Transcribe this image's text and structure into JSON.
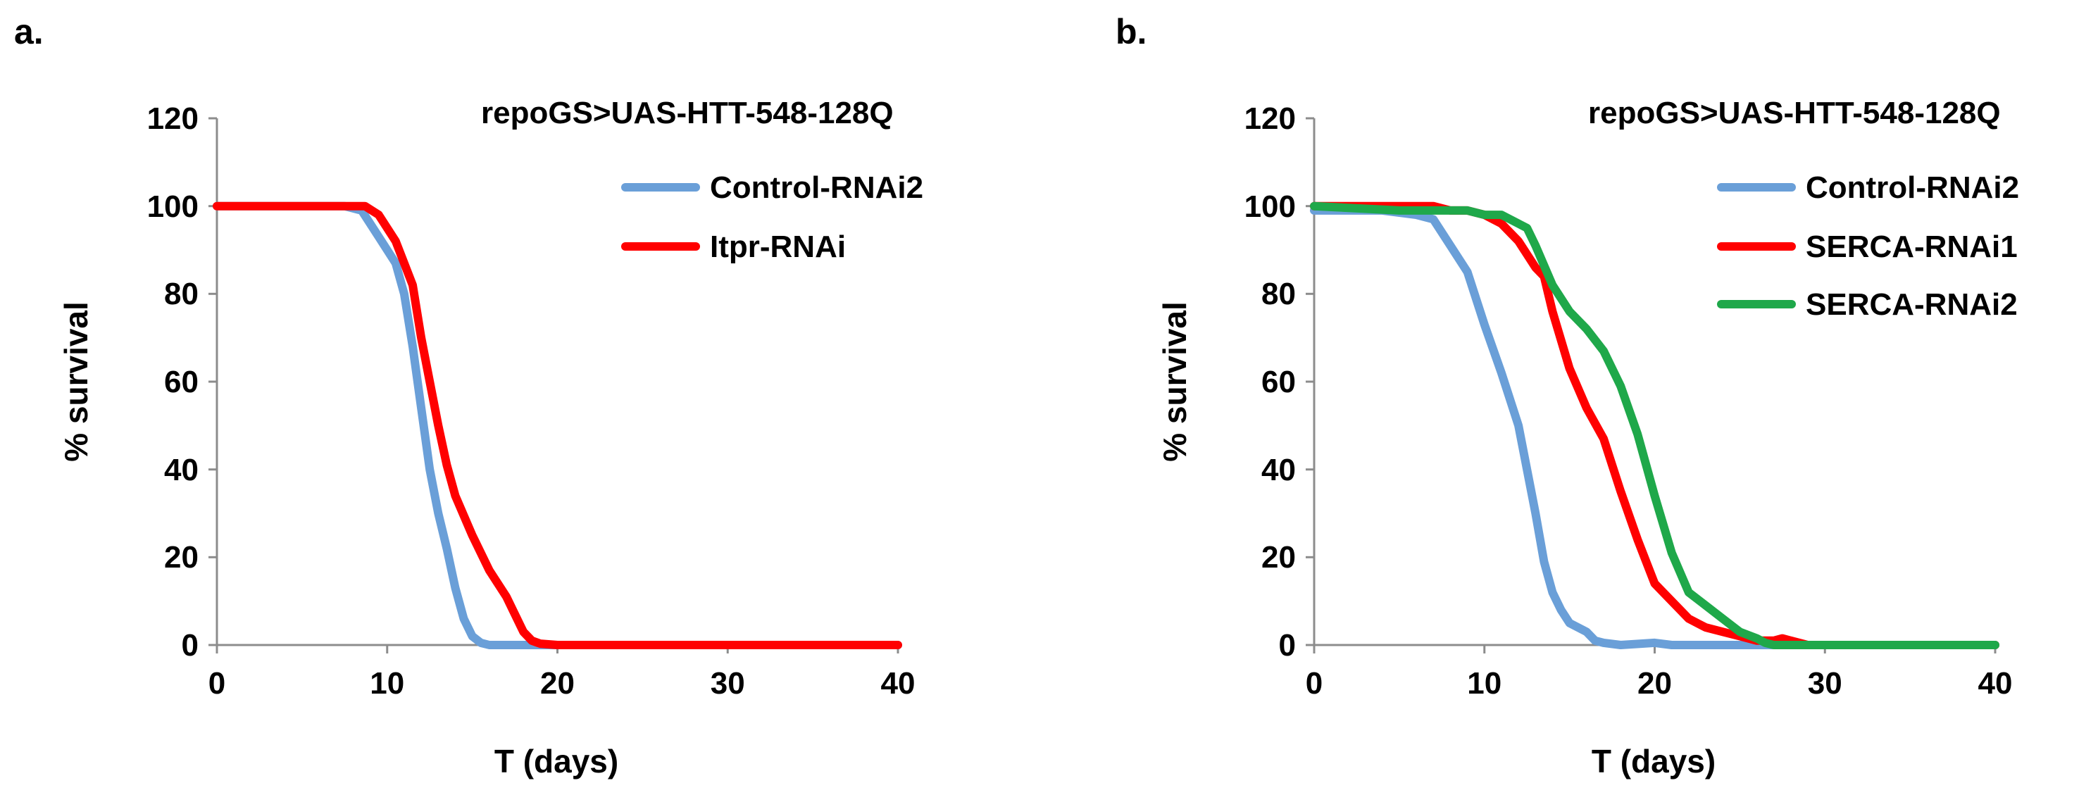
{
  "chart_data": [
    {
      "type": "line",
      "panel_label": "a.",
      "title": "repoGS>UAS-HTT-548-128Q",
      "xlabel": "T (days)",
      "ylabel": "% survival",
      "xlim": [
        0,
        40
      ],
      "ylim": [
        0,
        120
      ],
      "xticks": [
        0,
        10,
        20,
        30,
        40
      ],
      "yticks": [
        0,
        20,
        40,
        60,
        80,
        100,
        120
      ],
      "grid": false,
      "legend_position": "top-right",
      "series": [
        {
          "name": "Control-RNAi2",
          "color": "#6a9fd8",
          "x": [
            0,
            7.5,
            8.5,
            9.5,
            10.5,
            11,
            11.5,
            12,
            12.5,
            13,
            13.5,
            14,
            14.5,
            15,
            15.5,
            16,
            17,
            20,
            40
          ],
          "y": [
            100,
            100,
            99,
            93,
            87,
            80,
            68,
            54,
            40,
            30,
            22,
            13,
            6,
            2,
            0.5,
            0,
            0,
            0,
            0
          ]
        },
        {
          "name": "Itpr-RNAi",
          "color": "#ff0000",
          "x": [
            0,
            8,
            8.7,
            9.5,
            10.5,
            11.5,
            12,
            12.5,
            13,
            13.5,
            14,
            15,
            16,
            17,
            17.5,
            18,
            18.5,
            19,
            20,
            40
          ],
          "y": [
            100,
            100,
            100,
            98,
            92,
            82,
            70,
            60,
            50,
            41,
            34,
            25,
            17,
            11,
            7,
            3,
            1,
            0.3,
            0,
            0
          ]
        }
      ]
    },
    {
      "type": "line",
      "panel_label": "b.",
      "title": "repoGS>UAS-HTT-548-128Q",
      "xlabel": "T (days)",
      "ylabel": "% survival",
      "xlim": [
        0,
        40
      ],
      "ylim": [
        0,
        120
      ],
      "xticks": [
        0,
        10,
        20,
        30,
        40
      ],
      "yticks": [
        0,
        20,
        40,
        60,
        80,
        100,
        120
      ],
      "grid": false,
      "legend_position": "top-right",
      "series": [
        {
          "name": "Control-RNAi2",
          "color": "#6a9fd8",
          "x": [
            0,
            4,
            6,
            7,
            8,
            9,
            10,
            11,
            12,
            12.5,
            13,
            13.5,
            14,
            14.5,
            15,
            16,
            16.5,
            17,
            18,
            20,
            21,
            40
          ],
          "y": [
            99,
            99,
            98,
            97,
            91,
            85,
            73,
            62,
            50,
            40,
            30,
            19,
            12,
            8,
            5,
            3,
            1,
            0.5,
            0,
            0.5,
            0,
            0
          ]
        },
        {
          "name": "SERCA-RNAi1",
          "color": "#ff0000",
          "x": [
            0,
            6,
            7,
            8,
            9,
            10,
            11,
            12,
            13,
            13.5,
            14,
            15,
            16,
            17,
            18,
            19,
            20,
            21,
            22,
            23,
            24,
            25,
            26,
            27,
            27.5,
            28,
            29,
            40
          ],
          "y": [
            100,
            100,
            100,
            99,
            99,
            98,
            96,
            92,
            86,
            84,
            76,
            63,
            54,
            47,
            35,
            24,
            14,
            10,
            6,
            4,
            3,
            2,
            1,
            1,
            1.5,
            1,
            0,
            0
          ]
        },
        {
          "name": "SERCA-RNAi2",
          "color": "#1fa84a",
          "x": [
            0,
            5,
            8,
            9,
            10,
            11,
            12,
            12.5,
            13,
            14,
            15,
            16,
            17,
            18,
            19,
            20,
            21,
            22,
            23,
            24,
            25,
            26,
            26.5,
            27,
            28,
            40
          ],
          "y": [
            100,
            99,
            99,
            99,
            98,
            98,
            96,
            95,
            91,
            82,
            76,
            72,
            67,
            59,
            48,
            34,
            21,
            12,
            9,
            6,
            3,
            1.5,
            0.5,
            0,
            0,
            0
          ]
        }
      ]
    }
  ]
}
